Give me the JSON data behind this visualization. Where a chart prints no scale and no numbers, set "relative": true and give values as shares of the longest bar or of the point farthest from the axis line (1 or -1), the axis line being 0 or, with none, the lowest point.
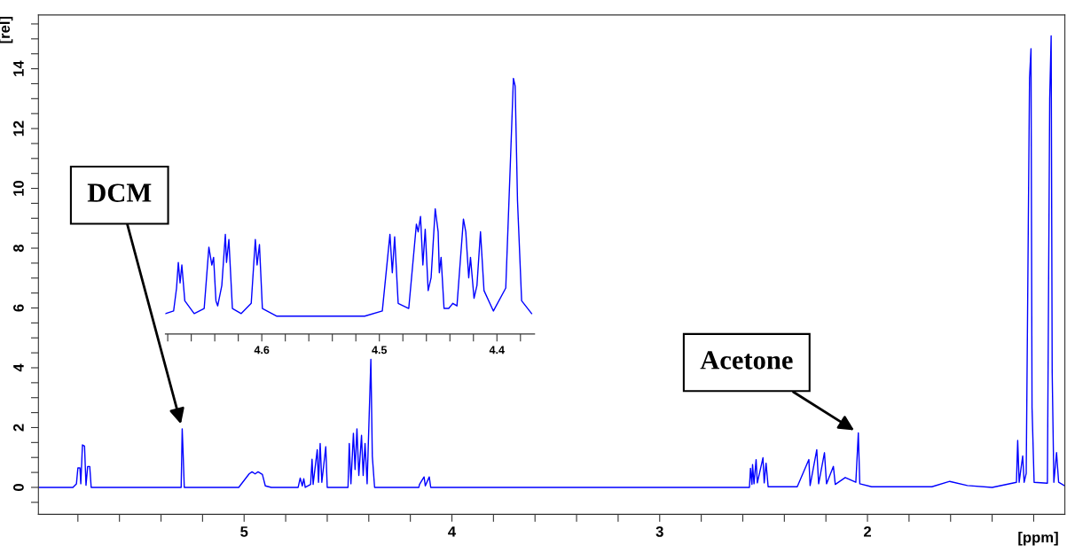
{
  "chart_data": [
    {
      "type": "line",
      "xlabel": "[ppm]",
      "ylabel": "[rel]",
      "xlim": [
        5.99,
        1.05
      ],
      "ylim": [
        -0.9,
        15.8
      ],
      "xticks": [
        {
          "value": 5.8,
          "label": null
        },
        {
          "value": 5.6,
          "label": null
        },
        {
          "value": 5.4,
          "label": null
        },
        {
          "value": 5.2,
          "label": null
        },
        5,
        {
          "value": 4.8,
          "label": null
        },
        {
          "value": 4.6,
          "label": null
        },
        {
          "value": 4.4,
          "label": null
        },
        {
          "value": 4.2,
          "label": null
        },
        4,
        {
          "value": 3.8,
          "label": null
        },
        {
          "value": 3.6,
          "label": null
        },
        {
          "value": 3.4,
          "label": null
        },
        {
          "value": 3.2,
          "label": null
        },
        3,
        {
          "value": 2.8,
          "label": null
        },
        {
          "value": 2.6,
          "label": null
        },
        {
          "value": 2.4,
          "label": null
        },
        {
          "value": 2.2,
          "label": null
        },
        2,
        {
          "value": 1.8,
          "label": null
        },
        {
          "value": 1.6,
          "label": null
        },
        {
          "value": 1.4,
          "label": null
        },
        {
          "value": 1.2,
          "label": null
        }
      ],
      "yticks": [
        {
          "value": -0.5,
          "label": null
        },
        0,
        {
          "value": 0.5,
          "label": null
        },
        {
          "value": 1,
          "label": null
        },
        {
          "value": 1.5,
          "label": null
        },
        2,
        {
          "value": 2.5,
          "label": null
        },
        {
          "value": 3,
          "label": null
        },
        {
          "value": 3.5,
          "label": null
        },
        4,
        {
          "value": 4.5,
          "label": null
        },
        {
          "value": 5,
          "label": null
        },
        {
          "value": 5.5,
          "label": null
        },
        6,
        {
          "value": 6.5,
          "label": null
        },
        {
          "value": 7,
          "label": null
        },
        {
          "value": 7.5,
          "label": null
        },
        8,
        {
          "value": 8.5,
          "label": null
        },
        {
          "value": 9,
          "label": null
        },
        {
          "value": 9.5,
          "label": null
        },
        10,
        {
          "value": 10.5,
          "label": null
        },
        {
          "value": 11,
          "label": null
        },
        {
          "value": 11.5,
          "label": null
        },
        12,
        {
          "value": 12.5,
          "label": null
        },
        {
          "value": 13,
          "label": null
        },
        {
          "value": 13.5,
          "label": null
        },
        14,
        {
          "value": 14.5,
          "label": null
        },
        {
          "value": 15,
          "label": null
        },
        {
          "value": 15.5,
          "label": null
        }
      ],
      "annotations": [
        {
          "text": "DCM",
          "x": 5.298,
          "y": 1.96
        },
        {
          "text": "Acetone",
          "x": 2.044,
          "y": 1.82
        }
      ],
      "series": [
        {
          "color": "#0000ff",
          "x": [
            5.99,
            5.824,
            5.807,
            5.8,
            5.79,
            5.786,
            5.778,
            5.768,
            5.761,
            5.753,
            5.743,
            5.736,
            5.303,
            5.298,
            5.294,
            5.288,
            5.026,
            4.976,
            4.962,
            4.947,
            4.933,
            4.912,
            4.898,
            4.869,
            4.74,
            4.73,
            4.72,
            4.713,
            4.706,
            4.68,
            4.673,
            4.668,
            4.648,
            4.642,
            4.634,
            4.626,
            4.607,
            4.6,
            4.5,
            4.494,
            4.486,
            4.474,
            4.466,
            4.457,
            4.448,
            4.435,
            4.427,
            4.418,
            4.408,
            4.39,
            4.383,
            4.372,
            4.33,
            4.159,
            4.156,
            4.134,
            4.128,
            4.109,
            4.102,
            2.696,
            2.568,
            2.563,
            2.556,
            2.553,
            2.546,
            2.536,
            2.53,
            2.503,
            2.497,
            2.488,
            2.478,
            2.338,
            2.282,
            2.276,
            2.244,
            2.235,
            2.207,
            2.197,
            2.164,
            2.155,
            2.107,
            2.056,
            2.044,
            2.037,
            1.98,
            1.69,
            1.604,
            1.519,
            1.4,
            1.283,
            1.277,
            1.27,
            1.253,
            1.246,
            1.236,
            1.22,
            1.213,
            1.208,
            1.198,
            1.134,
            1.123,
            1.116,
            1.111,
            1.103,
            1.09,
            1.08,
            1.05
          ],
          "values": [
            0,
            0,
            0.12,
            0.65,
            0.65,
            0.12,
            1.42,
            1.38,
            0.07,
            0.7,
            0.7,
            0,
            0,
            1.96,
            1.23,
            0,
            0,
            0.45,
            0.52,
            0.45,
            0.52,
            0.43,
            0.05,
            0,
            0,
            0.31,
            0.05,
            0.29,
            0,
            0.1,
            0.94,
            0.1,
            1.26,
            0.17,
            1.47,
            0.17,
            1.36,
            0,
            0,
            1.47,
            0.12,
            1.81,
            0.6,
            1.96,
            0.4,
            1.74,
            0.4,
            1.47,
            0.12,
            4.28,
            1.04,
            0,
            0,
            0,
            0.1,
            0.35,
            0.05,
            0.35,
            0,
            0,
            0,
            0.64,
            0.1,
            0.76,
            0.12,
            0.93,
            0.15,
            0.99,
            0.15,
            0.81,
            0.02,
            0.02,
            0.93,
            0.06,
            1.26,
            0.12,
            1.16,
            0.12,
            0.7,
            0.1,
            0.33,
            0.17,
            1.82,
            0.12,
            0.02,
            0.02,
            0.2,
            0.06,
            0,
            0.17,
            1.57,
            0.17,
            1.05,
            0.17,
            0.47,
            13.7,
            14.67,
            2.67,
            0.17,
            0.14,
            13.0,
            15.1,
            3.84,
            0.17,
            1.16,
            0.17,
            0.05
          ]
        }
      ]
    },
    {
      "type": "line",
      "relative": true,
      "tick_labels": "x",
      "xlim": [
        4.682,
        4.368
      ],
      "xticks": [
        {
          "value": 4.68,
          "label": null
        },
        {
          "value": 4.66,
          "label": null
        },
        {
          "value": 4.64,
          "label": null
        },
        {
          "value": 4.62,
          "label": null
        },
        4.6,
        {
          "value": 4.58,
          "label": null
        },
        {
          "value": 4.56,
          "label": null
        },
        {
          "value": 4.54,
          "label": null
        },
        {
          "value": 4.52,
          "label": null
        },
        4.5,
        {
          "value": 4.48,
          "label": null
        },
        {
          "value": 4.46,
          "label": null
        },
        {
          "value": 4.44,
          "label": null
        },
        {
          "value": 4.42,
          "label": null
        },
        4.4,
        {
          "value": 4.38,
          "label": null
        }
      ],
      "series": [
        {
          "color": "#0000ff",
          "x": [
            4.682,
            4.675,
            4.6725,
            4.671,
            4.6695,
            4.668,
            4.6655,
            4.6575,
            4.649,
            4.645,
            4.6425,
            4.641,
            4.639,
            4.6375,
            4.634,
            4.631,
            4.63,
            4.628,
            4.625,
            4.6175,
            4.609,
            4.6055,
            4.604,
            4.602,
            4.5995,
            4.5875,
            4.5125,
            4.4975,
            4.491,
            4.489,
            4.487,
            4.484,
            4.475,
            4.4685,
            4.467,
            4.465,
            4.463,
            4.461,
            4.4585,
            4.456,
            4.4525,
            4.45,
            4.449,
            4.4475,
            4.445,
            4.441,
            4.4375,
            4.434,
            4.4285,
            4.4265,
            4.424,
            4.4225,
            4.4195,
            4.417,
            4.414,
            4.411,
            4.403,
            4.3925,
            4.3885,
            4.386,
            4.3845,
            4.3825,
            4.379,
            4.3705
          ],
          "values": [
            0.08,
            0.09,
            0.18,
            0.28,
            0.2,
            0.27,
            0.13,
            0.08,
            0.1,
            0.34,
            0.27,
            0.3,
            0.13,
            0.11,
            0.19,
            0.39,
            0.28,
            0.37,
            0.1,
            0.08,
            0.12,
            0.37,
            0.27,
            0.35,
            0.1,
            0.07,
            0.07,
            0.09,
            0.39,
            0.24,
            0.38,
            0.12,
            0.1,
            0.43,
            0.4,
            0.46,
            0.27,
            0.41,
            0.17,
            0.22,
            0.49,
            0.4,
            0.24,
            0.3,
            0.1,
            0.1,
            0.12,
            0.11,
            0.45,
            0.4,
            0.22,
            0.3,
            0.14,
            0.19,
            0.4,
            0.17,
            0.09,
            0.18,
            0.68,
            1.0,
            0.97,
            0.52,
            0.13,
            0.08
          ]
        }
      ]
    }
  ]
}
